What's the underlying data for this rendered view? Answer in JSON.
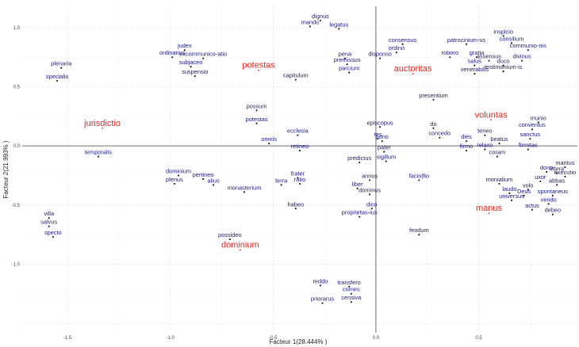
{
  "chart_data": {
    "type": "scatter",
    "xlabel": "Facteur 1(28.444% )",
    "ylabel": "Facteur 2(21.993% )",
    "xlim": [
      -1.72,
      0.98
    ],
    "ylim": [
      -1.58,
      1.18
    ],
    "xticks": [
      "-1.5",
      "-1.0",
      "-0.5",
      "0.0",
      "0.5"
    ],
    "xtick_values": [
      -1.5,
      -1.0,
      -0.5,
      0.0,
      0.5
    ],
    "yticks": [
      "1.0",
      "0.5",
      "0.0",
      "-0.5",
      "-1.0"
    ],
    "ytick_values": [
      1.0,
      0.5,
      0.0,
      -0.5,
      -1.0
    ],
    "grid": true,
    "colors": {
      "word": "#1a1a7a",
      "category": "#e0281e",
      "marker": "#222222"
    },
    "points": [
      {
        "label": "dignus",
        "x": -0.27,
        "y": 1.06,
        "group": "word"
      },
      {
        "label": "mando",
        "x": -0.32,
        "y": 1.01,
        "group": "word"
      },
      {
        "label": "legatus",
        "x": -0.18,
        "y": 0.99,
        "group": "word"
      },
      {
        "label": "inspicio",
        "x": 0.62,
        "y": 0.93,
        "group": "word"
      },
      {
        "label": "consilium",
        "x": 0.66,
        "y": 0.87,
        "group": "word"
      },
      {
        "label": "patrocinium-us",
        "x": 0.44,
        "y": 0.86,
        "group": "word"
      },
      {
        "label": "consensus",
        "x": 0.13,
        "y": 0.86,
        "group": "word"
      },
      {
        "label": "communio-nis",
        "x": 0.74,
        "y": 0.81,
        "group": "word"
      },
      {
        "label": "judex",
        "x": -0.93,
        "y": 0.81,
        "group": "word"
      },
      {
        "label": "ordino",
        "x": 0.1,
        "y": 0.79,
        "group": "word"
      },
      {
        "label": "ordinarius",
        "x": -0.99,
        "y": 0.75,
        "group": "word"
      },
      {
        "label": "excommunico-atio",
        "x": -0.84,
        "y": 0.74,
        "group": "word"
      },
      {
        "label": "pena",
        "x": -0.15,
        "y": 0.74,
        "group": "word"
      },
      {
        "label": "disponso",
        "x": 0.02,
        "y": 0.74,
        "group": "word"
      },
      {
        "label": "roboro",
        "x": 0.36,
        "y": 0.75,
        "group": "word"
      },
      {
        "label": "gratia",
        "x": 0.49,
        "y": 0.75,
        "group": "word"
      },
      {
        "label": "assensus",
        "x": 0.55,
        "y": 0.72,
        "group": "word"
      },
      {
        "label": "divinus",
        "x": 0.71,
        "y": 0.72,
        "group": "word"
      },
      {
        "label": "premissus",
        "x": -0.14,
        "y": 0.69,
        "group": "word"
      },
      {
        "label": "subjaceo",
        "x": -0.9,
        "y": 0.67,
        "group": "word"
      },
      {
        "label": "salus",
        "x": 0.48,
        "y": 0.68,
        "group": "word"
      },
      {
        "label": "duco",
        "x": 0.62,
        "y": 0.68,
        "group": "word"
      },
      {
        "label": "plenaria",
        "x": -1.53,
        "y": 0.66,
        "group": "word"
      },
      {
        "label": "testimonium-is",
        "x": 0.62,
        "y": 0.63,
        "group": "word"
      },
      {
        "label": "venerabilis",
        "x": 0.48,
        "y": 0.61,
        "group": "word"
      },
      {
        "label": "parcium",
        "x": -0.13,
        "y": 0.62,
        "group": "word"
      },
      {
        "label": "suspensio",
        "x": -0.88,
        "y": 0.59,
        "group": "word"
      },
      {
        "label": "capitulum",
        "x": -0.39,
        "y": 0.56,
        "group": "word"
      },
      {
        "label": "specialis",
        "x": -1.55,
        "y": 0.55,
        "group": "word"
      },
      {
        "label": "presentium",
        "x": 0.28,
        "y": 0.39,
        "group": "word"
      },
      {
        "label": "possum",
        "x": -0.58,
        "y": 0.3,
        "group": "word"
      },
      {
        "label": "munio",
        "x": 0.79,
        "y": 0.2,
        "group": "word"
      },
      {
        "label": "potestas",
        "x": -0.58,
        "y": 0.19,
        "group": "word"
      },
      {
        "label": "episcopus",
        "x": 0.02,
        "y": 0.16,
        "group": "word"
      },
      {
        "label": "do",
        "x": 0.28,
        "y": 0.15,
        "group": "word"
      },
      {
        "label": "conventus",
        "x": 0.76,
        "y": 0.14,
        "group": "word"
      },
      {
        "label": "teneo",
        "x": 0.53,
        "y": 0.09,
        "group": "word"
      },
      {
        "label": "ecclesia",
        "x": -0.38,
        "y": 0.09,
        "group": "word"
      },
      {
        "label": "concedo",
        "x": 0.31,
        "y": 0.07,
        "group": "word"
      },
      {
        "label": "res",
        "x": 0.01,
        "y": 0.06,
        "group": "word"
      },
      {
        "label": "sanctus",
        "x": 0.75,
        "y": 0.06,
        "group": "word"
      },
      {
        "label": "pono",
        "x": 0.03,
        "y": 0.04,
        "group": "word"
      },
      {
        "label": "dies",
        "x": 0.44,
        "y": 0.04,
        "group": "word"
      },
      {
        "label": "beatus",
        "x": 0.6,
        "y": 0.02,
        "group": "word"
      },
      {
        "label": "omnis",
        "x": -0.52,
        "y": 0.02,
        "group": "word"
      },
      {
        "label": "relaxo",
        "x": 0.53,
        "y": -0.03,
        "group": "word"
      },
      {
        "label": "firmitas",
        "x": 0.74,
        "y": -0.03,
        "group": "word"
      },
      {
        "label": "firmo",
        "x": 0.44,
        "y": -0.04,
        "group": "word"
      },
      {
        "label": "retineo",
        "x": -0.37,
        "y": -0.04,
        "group": "word"
      },
      {
        "label": "pater",
        "x": 0.04,
        "y": -0.05,
        "group": "word"
      },
      {
        "label": "temporalis",
        "x": -1.35,
        "y": -0.09,
        "group": "word"
      },
      {
        "label": "coram",
        "x": 0.59,
        "y": -0.09,
        "group": "word"
      },
      {
        "label": "sigillum",
        "x": 0.05,
        "y": -0.13,
        "group": "word"
      },
      {
        "label": "predictus",
        "x": -0.08,
        "y": -0.14,
        "group": "word"
      },
      {
        "label": "dono",
        "x": 0.83,
        "y": -0.22,
        "group": "word"
      },
      {
        "label": "maritus",
        "x": 0.92,
        "y": -0.18,
        "group": "word"
      },
      {
        "label": "littera",
        "x": 0.88,
        "y": -0.23,
        "group": "word"
      },
      {
        "label": "executio",
        "x": 0.92,
        "y": -0.26,
        "group": "word"
      },
      {
        "label": "dominium",
        "x": -0.96,
        "y": -0.25,
        "group": "word"
      },
      {
        "label": "pertineo",
        "x": -0.84,
        "y": -0.28,
        "group": "word"
      },
      {
        "label": "frater",
        "x": -0.38,
        "y": -0.27,
        "group": "word"
      },
      {
        "label": "uxor",
        "x": 0.8,
        "y": -0.3,
        "group": "word"
      },
      {
        "label": "annus",
        "x": -0.03,
        "y": -0.29,
        "group": "word"
      },
      {
        "label": "facio|fio",
        "x": 0.21,
        "y": -0.29,
        "group": "word"
      },
      {
        "label": "monialium",
        "x": 0.6,
        "y": -0.32,
        "group": "word"
      },
      {
        "label": "abbas",
        "x": 0.88,
        "y": -0.33,
        "group": "word"
      },
      {
        "label": "plenus",
        "x": -0.98,
        "y": -0.32,
        "group": "word"
      },
      {
        "label": "alius",
        "x": -0.79,
        "y": -0.33,
        "group": "word"
      },
      {
        "label": "terra",
        "x": -0.46,
        "y": -0.33,
        "group": "word"
      },
      {
        "label": "ratio",
        "x": -0.37,
        "y": -0.32,
        "group": "word"
      },
      {
        "label": "liber",
        "x": -0.09,
        "y": -0.36,
        "group": "word"
      },
      {
        "label": "volo",
        "x": 0.74,
        "y": -0.37,
        "group": "word"
      },
      {
        "label": "spontaneus",
        "x": 0.86,
        "y": -0.42,
        "group": "word"
      },
      {
        "label": "monasterium",
        "x": -0.64,
        "y": -0.39,
        "group": "word"
      },
      {
        "label": "dominus",
        "x": -0.03,
        "y": -0.41,
        "group": "word"
      },
      {
        "label": "laudo",
        "x": 0.65,
        "y": -0.4,
        "group": "word"
      },
      {
        "label": "Deus",
        "x": 0.72,
        "y": -0.42,
        "group": "word"
      },
      {
        "label": "universus",
        "x": 0.66,
        "y": -0.46,
        "group": "word"
      },
      {
        "label": "vendo",
        "x": 0.84,
        "y": -0.49,
        "group": "word"
      },
      {
        "label": "habeo",
        "x": -0.39,
        "y": -0.53,
        "group": "word"
      },
      {
        "label": "dico",
        "x": -0.02,
        "y": -0.53,
        "group": "word"
      },
      {
        "label": "actus",
        "x": 0.76,
        "y": -0.54,
        "group": "word"
      },
      {
        "label": "debeo",
        "x": 0.86,
        "y": -0.58,
        "group": "word"
      },
      {
        "label": "proprietas-ius",
        "x": -0.08,
        "y": -0.6,
        "group": "word"
      },
      {
        "label": "villa",
        "x": -1.59,
        "y": -0.61,
        "group": "word"
      },
      {
        "label": "salvus",
        "x": -1.59,
        "y": -0.68,
        "group": "word"
      },
      {
        "label": "feodum",
        "x": 0.21,
        "y": -0.75,
        "group": "word"
      },
      {
        "label": "possideo",
        "x": -0.71,
        "y": -0.79,
        "group": "word"
      },
      {
        "label": "specto",
        "x": -1.57,
        "y": -0.77,
        "group": "word"
      },
      {
        "label": "reddo",
        "x": -0.27,
        "y": -1.18,
        "group": "word"
      },
      {
        "label": "transfero",
        "x": -0.13,
        "y": -1.19,
        "group": "word"
      },
      {
        "label": "comes",
        "x": -0.12,
        "y": -1.25,
        "group": "word"
      },
      {
        "label": "priorarus",
        "x": -0.26,
        "y": -1.33,
        "group": "word"
      },
      {
        "label": "censiva",
        "x": -0.12,
        "y": -1.32,
        "group": "word"
      },
      {
        "label": "potestas",
        "x": -0.57,
        "y": 0.64,
        "group": "category"
      },
      {
        "label": "auctoritas",
        "x": 0.18,
        "y": 0.61,
        "group": "category"
      },
      {
        "label": "jurisdictio",
        "x": -1.33,
        "y": 0.15,
        "group": "category"
      },
      {
        "label": "voluntas",
        "x": 0.56,
        "y": 0.22,
        "group": "category"
      },
      {
        "label": "dominium",
        "x": -0.66,
        "y": -0.88,
        "group": "category"
      },
      {
        "label": "manus",
        "x": 0.55,
        "y": -0.57,
        "group": "category"
      }
    ]
  }
}
